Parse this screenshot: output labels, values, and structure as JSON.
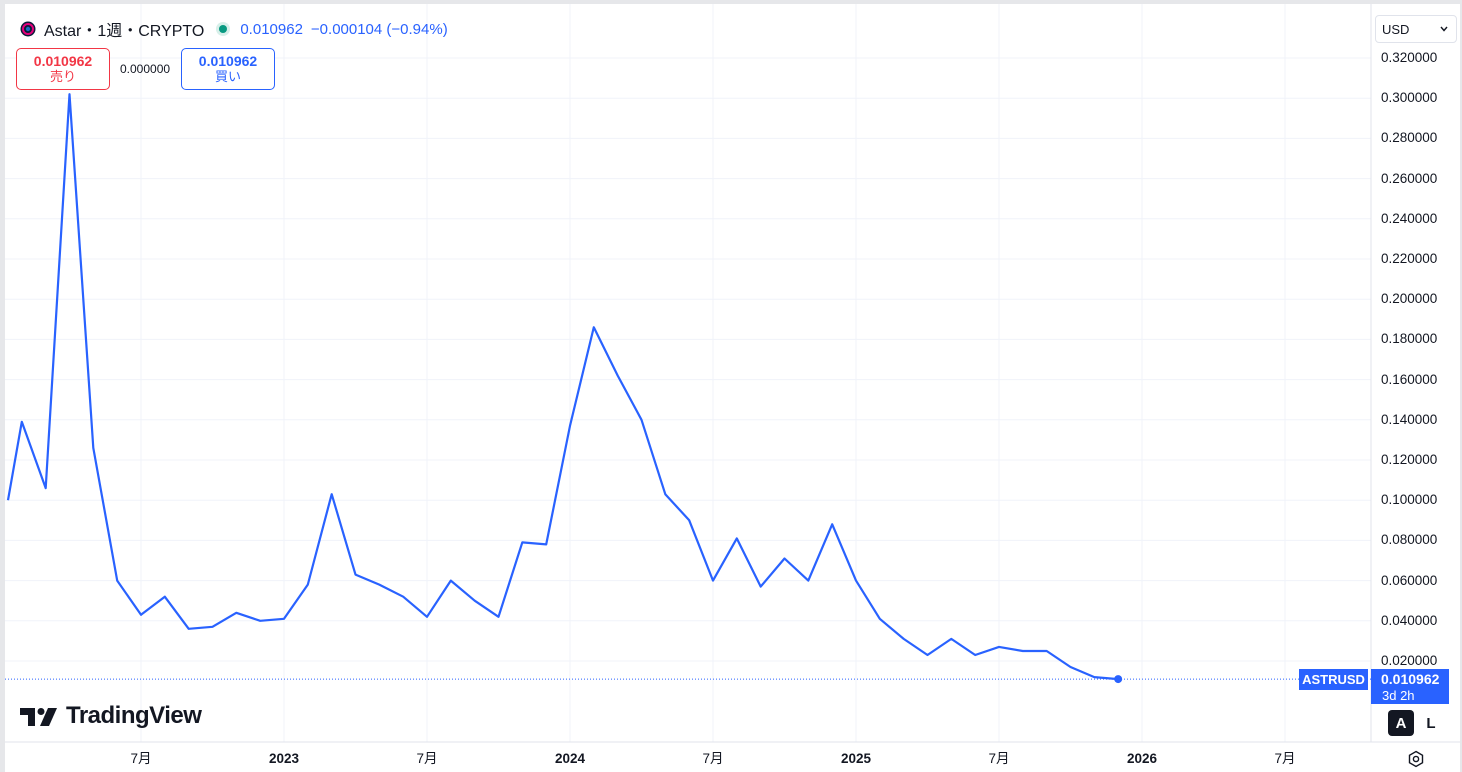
{
  "legend": {
    "symbol": "Astar・1週・CRYPTO",
    "value": "0.010962",
    "change": "−0.000104 (−0.94%)"
  },
  "trade": {
    "sell_price": "0.010962",
    "sell_label": "売り",
    "spread": "0.000000",
    "buy_price": "0.010962",
    "buy_label": "買い"
  },
  "currency": {
    "selected": "USD"
  },
  "brand": {
    "name": "TradingView"
  },
  "price_scale": {
    "mode_auto": "A",
    "mode_log": "L"
  },
  "current": {
    "symbol_tag": "ASTRUSD",
    "price": "0.010962",
    "countdown": "3d 2h"
  },
  "icons": [
    "astar-logo-icon",
    "market-status-icon",
    "chevron-down-icon",
    "tradingview-logo-icon",
    "gear-icon"
  ],
  "colors": {
    "line": "#2962ff",
    "sell": "#f23645",
    "buy": "#2962ff",
    "open_status": "#089981"
  },
  "chart_data": {
    "type": "line",
    "title": "Astar・1週・CRYPTO",
    "xlabel": "",
    "ylabel": "",
    "y_tick_labels": [
      "0.320000",
      "0.300000",
      "0.280000",
      "0.260000",
      "0.240000",
      "0.220000",
      "0.200000",
      "0.180000",
      "0.160000",
      "0.140000",
      "0.120000",
      "0.100000",
      "0.080000",
      "0.060000",
      "0.040000",
      "0.020000"
    ],
    "y_ticks": [
      0.32,
      0.3,
      0.28,
      0.26,
      0.24,
      0.22,
      0.2,
      0.18,
      0.16,
      0.14,
      0.12,
      0.1,
      0.08,
      0.06,
      0.04,
      0.02
    ],
    "ylim": [
      0,
      0.335
    ],
    "x_tick_labels": [
      "7月",
      "2023",
      "7月",
      "2024",
      "7月",
      "2025",
      "7月",
      "2026",
      "7月"
    ],
    "x_tick_bold": [
      false,
      true,
      false,
      true,
      false,
      true,
      false,
      true,
      false
    ],
    "x_tick_dates": [
      "2022-07",
      "2023-01",
      "2023-07",
      "2024-01",
      "2024-07",
      "2025-01",
      "2025-07",
      "2026-01",
      "2026-07"
    ],
    "x_range": [
      "2022-01",
      "2026-12"
    ],
    "grid": true,
    "series": [
      {
        "name": "ASTRUSD",
        "x": [
          "2022-01",
          "2022-02",
          "2022-03",
          "2022-04",
          "2022-05",
          "2022-06",
          "2022-07",
          "2022-08",
          "2022-09",
          "2022-10",
          "2022-11",
          "2022-12",
          "2023-01",
          "2023-02",
          "2023-03",
          "2023-04",
          "2023-05",
          "2023-06",
          "2023-07",
          "2023-08",
          "2023-09",
          "2023-10",
          "2023-11",
          "2023-12",
          "2024-01",
          "2024-02",
          "2024-03",
          "2024-04",
          "2024-05",
          "2024-06",
          "2024-07",
          "2024-08",
          "2024-09",
          "2024-10",
          "2024-11",
          "2024-12",
          "2025-01",
          "2025-02",
          "2025-03",
          "2025-04",
          "2025-05",
          "2025-06",
          "2025-07",
          "2025-08",
          "2025-09",
          "2025-10",
          "2025-11",
          "2025-12"
        ],
        "y": [
          0.1,
          0.139,
          0.106,
          0.302,
          0.126,
          0.06,
          0.043,
          0.052,
          0.036,
          0.037,
          0.044,
          0.04,
          0.041,
          0.058,
          0.103,
          0.063,
          0.058,
          0.052,
          0.042,
          0.06,
          0.05,
          0.042,
          0.079,
          0.078,
          0.137,
          0.186,
          0.162,
          0.14,
          0.103,
          0.09,
          0.06,
          0.081,
          0.057,
          0.071,
          0.06,
          0.088,
          0.06,
          0.041,
          0.031,
          0.023,
          0.031,
          0.023,
          0.027,
          0.025,
          0.025,
          0.017,
          0.012,
          0.011
        ]
      }
    ]
  }
}
